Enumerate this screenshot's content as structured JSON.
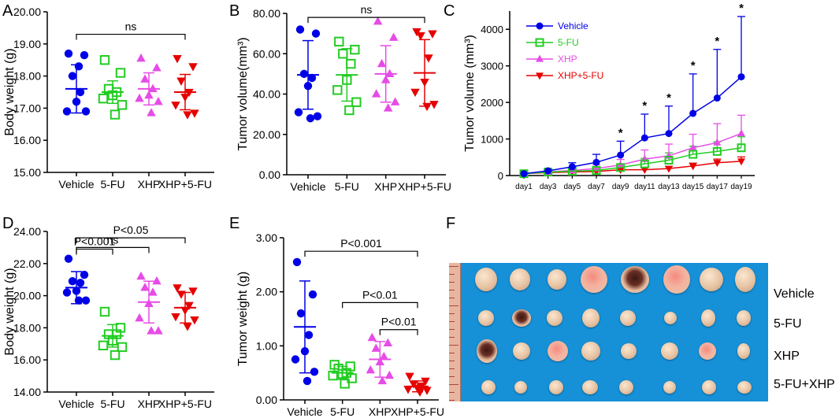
{
  "panels": {
    "A": {
      "letter": "A",
      "chart_data": {
        "type": "scatter",
        "ylabel": "Body weight (g)",
        "ylim": [
          15,
          20
        ],
        "ytick_labels": [
          "15.00",
          "16.00",
          "17.00",
          "18.00",
          "19.00",
          "20.00"
        ],
        "categories": [
          "Vehicle",
          "5-FU",
          "XHP",
          "XHP+5-FU"
        ],
        "series": [
          {
            "name": "Vehicle",
            "color": "#0000e6",
            "marker": "circle",
            "points": [
              18.7,
              18.65,
              18.0,
              17.5,
              17.2,
              16.9,
              16.9,
              18.3
            ],
            "mean": 17.6,
            "sd": 0.75
          },
          {
            "name": "5-FU",
            "color": "#22cc22",
            "marker": "square",
            "points": [
              18.5,
              18.1,
              17.6,
              17.5,
              17.4,
              17.3,
              17.1,
              16.8
            ],
            "mean": 17.5,
            "sd": 0.35
          },
          {
            "name": "XHP",
            "color": "#e64ce6",
            "marker": "triangle",
            "points": [
              18.55,
              18.25,
              17.9,
              17.6,
              17.4,
              17.3,
              17.2,
              16.85
            ],
            "mean": 17.6,
            "sd": 0.5
          },
          {
            "name": "XHP+5-FU",
            "color": "#e60000",
            "marker": "triangle-down",
            "points": [
              18.55,
              18.3,
              17.85,
              17.5,
              17.35,
              17.1,
              16.85,
              16.8
            ],
            "mean": 17.5,
            "sd": 0.55
          }
        ],
        "annotations": [
          {
            "from": "Vehicle",
            "to": "XHP+5-FU",
            "y": 19.3,
            "label": "ns"
          }
        ]
      }
    },
    "B": {
      "letter": "B",
      "chart_data": {
        "type": "scatter",
        "ylabel": "Tumor volume(mm³)",
        "ylim": [
          0,
          80
        ],
        "ytick_labels": [
          "0.00",
          "20.00",
          "40.00",
          "60.00",
          "80.00"
        ],
        "categories": [
          "Vehicle",
          "5-FU",
          "XHP",
          "XHP+5-FU"
        ],
        "series": [
          {
            "name": "Vehicle",
            "color": "#0000e6",
            "marker": "circle",
            "points": [
              72,
              70,
              50,
              48,
              44,
              31,
              29,
              28
            ],
            "mean": 49.5,
            "sd": 17
          },
          {
            "name": "5-FU",
            "color": "#22cc22",
            "marker": "square",
            "points": [
              66,
              62,
              60,
              55,
              47,
              42,
              36,
              32
            ],
            "mean": 49.5,
            "sd": 13
          },
          {
            "name": "XHP",
            "color": "#e64ce6",
            "marker": "triangle",
            "points": [
              76,
              68,
              55,
              50,
              47,
              40,
              36,
              33
            ],
            "mean": 50,
            "sd": 14
          },
          {
            "name": "XHP+5-FU",
            "color": "#e60000",
            "marker": "triangle-down",
            "points": [
              71,
              70,
              69,
              58,
              46,
              41,
              35,
              34
            ],
            "mean": 50.5,
            "sd": 16.5
          }
        ],
        "annotations": [
          {
            "from": "Vehicle",
            "to": "XHP+5-FU",
            "y": 78,
            "label": "ns"
          }
        ]
      }
    },
    "C": {
      "letter": "C",
      "chart_data": {
        "type": "line",
        "ylabel": "Tumor volume (mm³)",
        "ylim": [
          0,
          4500
        ],
        "yticks": [
          0,
          1000,
          2000,
          3000,
          4000
        ],
        "ytick_labels": [
          "0",
          "1000",
          "2000",
          "3000",
          "4000"
        ],
        "categories": [
          "day1",
          "day3",
          "day5",
          "day7",
          "day9",
          "day11",
          "day13",
          "day15",
          "day17",
          "day19"
        ],
        "series": [
          {
            "name": "Vehicle",
            "color": "#0000e6",
            "marker": "circle",
            "values": [
              50,
              130,
              240,
              360,
              560,
              1030,
              1150,
              1700,
              2120,
              2700
            ],
            "err": [
              20,
              30,
              110,
              220,
              380,
              650,
              750,
              1080,
              1330,
              1650
            ]
          },
          {
            "name": "5-FU",
            "color": "#22cc22",
            "marker": "square",
            "values": [
              50,
              95,
              120,
              140,
              220,
              320,
              420,
              580,
              660,
              760
            ],
            "err": [
              15,
              20,
              40,
              60,
              100,
              150,
              200,
              220,
              260,
              300
            ]
          },
          {
            "name": "XHP",
            "color": "#e64ce6",
            "marker": "triangle",
            "values": [
              50,
              100,
              140,
              190,
              290,
              450,
              540,
              760,
              900,
              1150
            ],
            "err": [
              15,
              25,
              60,
              100,
              150,
              250,
              320,
              370,
              520,
              500
            ]
          },
          {
            "name": "XHP+5-FU",
            "color": "#e60000",
            "marker": "triangle-down",
            "values": [
              50,
              80,
              100,
              110,
              160,
              160,
              190,
              260,
              350,
              390
            ],
            "err": [
              10,
              15,
              20,
              30,
              40,
              50,
              60,
              80,
              100,
              120
            ]
          }
        ],
        "significance": {
          "label": "*",
          "days": [
            "day9",
            "day11",
            "day13",
            "day15",
            "day17",
            "day19"
          ]
        }
      }
    },
    "D": {
      "letter": "D",
      "chart_data": {
        "type": "scatter",
        "ylabel": "Body weight (g)",
        "ylim": [
          14,
          24
        ],
        "ytick_labels": [
          "14.00",
          "16.00",
          "18.00",
          "20.00",
          "22.00",
          "24.00"
        ],
        "categories": [
          "Vehicle",
          "5-FU",
          "XHP",
          "XHP+5-FU"
        ],
        "series": [
          {
            "name": "Vehicle",
            "color": "#0000e6",
            "marker": "circle",
            "points": [
              22.3,
              21.3,
              20.9,
              20.8,
              20.3,
              20.2,
              19.7,
              19.7
            ],
            "mean": 20.5,
            "sd": 1.0
          },
          {
            "name": "5-FU",
            "color": "#22cc22",
            "marker": "square",
            "points": [
              19.0,
              18.0,
              17.6,
              17.6,
              17.2,
              16.9,
              16.8,
              16.3
            ],
            "mean": 17.5,
            "sd": 0.7
          },
          {
            "name": "XHP",
            "color": "#e64ce6",
            "marker": "triangle",
            "points": [
              21.2,
              20.9,
              20.5,
              20.2,
              19.5,
              18.6,
              17.8,
              17.8
            ],
            "mean": 19.6,
            "sd": 1.3
          },
          {
            "name": "XHP+5-FU",
            "color": "#e60000",
            "marker": "triangle-down",
            "points": [
              20.5,
              20.3,
              20.1,
              19.4,
              19.1,
              18.7,
              18.5,
              18.1
            ],
            "mean": 19.25,
            "sd": 0.95
          }
        ],
        "annotations": [
          {
            "from": "Vehicle",
            "to": "5-FU",
            "y": 22.9,
            "label": "P<0.001"
          },
          {
            "from": "Vehicle",
            "to": "XHP",
            "y": 23.0,
            "label": "ns",
            "level": 2
          },
          {
            "from": "Vehicle",
            "to": "XHP+5-FU",
            "y": 23.6,
            "label": "P<0.05",
            "level": 3
          }
        ]
      }
    },
    "E": {
      "letter": "E",
      "chart_data": {
        "type": "scatter",
        "ylabel": "Tumor weight (g)",
        "ylim": [
          0,
          3
        ],
        "ytick_labels": [
          "0.00",
          "1.00",
          "2.00",
          "3.00"
        ],
        "categories": [
          "Vehicle",
          "5-FU",
          "XHP",
          "XHP+5-FU"
        ],
        "series": [
          {
            "name": "Vehicle",
            "color": "#0000e6",
            "marker": "circle",
            "points": [
              2.55,
              1.95,
              1.6,
              1.2,
              0.9,
              0.75,
              0.52,
              0.35
            ],
            "mean": 1.35,
            "sd": 0.85
          },
          {
            "name": "5-FU",
            "color": "#22cc22",
            "marker": "square",
            "points": [
              0.65,
              0.62,
              0.58,
              0.5,
              0.48,
              0.45,
              0.4,
              0.3
            ],
            "mean": 0.5,
            "sd": 0.12
          },
          {
            "name": "XHP",
            "color": "#e64ce6",
            "marker": "triangle",
            "points": [
              1.15,
              1.05,
              0.95,
              0.8,
              0.7,
              0.55,
              0.45,
              0.35
            ],
            "mean": 0.75,
            "sd": 0.33
          },
          {
            "name": "XHP+5-FU",
            "color": "#e60000",
            "marker": "triangle-down",
            "points": [
              0.44,
              0.35,
              0.3,
              0.26,
              0.22,
              0.2,
              0.18,
              0.15
            ],
            "mean": 0.25,
            "sd": 0.1
          }
        ],
        "annotations": [
          {
            "from": "Vehicle",
            "to": "XHP+5-FU",
            "y": 2.75,
            "label": "P<0.001"
          },
          {
            "from": "5-FU",
            "to": "XHP+5-FU",
            "y": 1.8,
            "label": "P<0.01"
          },
          {
            "from": "XHP",
            "to": "XHP+5-FU",
            "y": 1.3,
            "label": "P<0.01"
          }
        ]
      }
    }
  },
  "panel_f": {
    "letter": "F",
    "rows": [
      "Vehicle",
      "5-FU",
      "XHP",
      "5-FU+XHP"
    ]
  }
}
